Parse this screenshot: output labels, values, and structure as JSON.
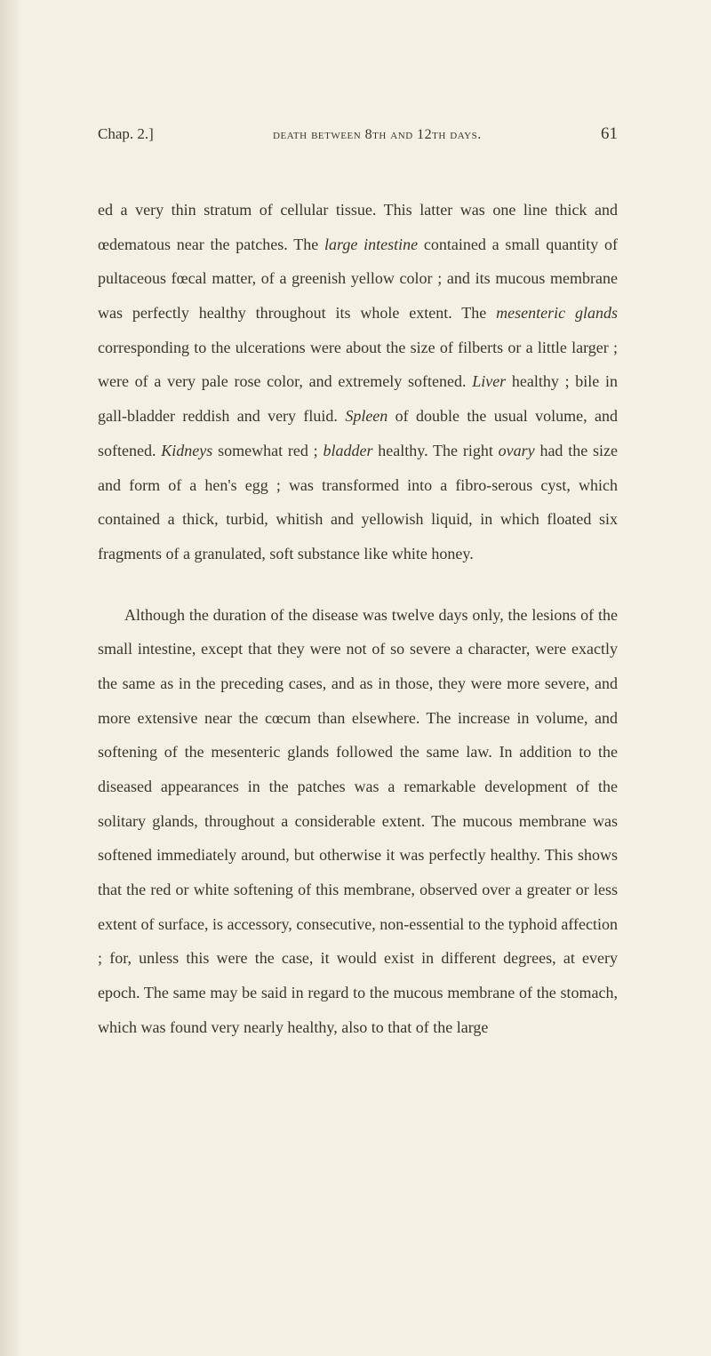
{
  "header": {
    "chapter_ref": "Chap. 2.]",
    "title": "death between 8th and 12th days.",
    "page_number": "61"
  },
  "paragraphs": {
    "p1_part1": "ed a very thin stratum of cellular tissue. This latter was one line thick and œdematous near the patches. The ",
    "p1_italic1": "large intestine",
    "p1_part2": " contained a small quantity of pultaceous fœcal matter, of a greenish yellow color ; and its mucous membrane was perfectly healthy throughout its whole extent. The ",
    "p1_italic2": "mesenteric glands",
    "p1_part3": " corresponding to the ulcerations were about the size of filberts or a little larger ; were of a very pale rose color, and extremely softened. ",
    "p1_italic3": "Liver",
    "p1_part4": " healthy ; bile in gall-bladder reddish and very fluid. ",
    "p1_italic4": "Spleen",
    "p1_part5": " of double the usual volume, and softened. ",
    "p1_italic5": "Kidneys",
    "p1_part6": " somewhat red ; ",
    "p1_italic6": "bladder",
    "p1_part7": " healthy. The right ",
    "p1_italic7": "ovary",
    "p1_part8": " had the size and form of a hen's egg ; was transformed into a fibro-serous cyst, which contained a thick, turbid, whitish and yellowish liquid, in which floated six fragments of a granulated, soft substance like white honey.",
    "p2": "Although the duration of the disease was twelve days only, the lesions of the small intestine, except that they were not of so severe a character, were exactly the same as in the preceding cases, and as in those, they were more severe, and more extensive near the cœcum than elsewhere. The increase in volume, and softening of the mesenteric glands followed the same law. In addition to the diseased appearances in the patches was a remarkable development of the solitary glands, throughout a considerable extent. The mucous membrane was softened immediately around, but otherwise it was perfectly healthy. This shows that the red or white softening of this membrane, observed over a greater or less extent of surface, is accessory, consecutive, non-essential to the typhoid affection ; for, unless this were the case, it would exist in different degrees, at every epoch. The same may be said in regard to the mucous membrane of the stomach, which was found very nearly healthy, also to that of the large"
  }
}
